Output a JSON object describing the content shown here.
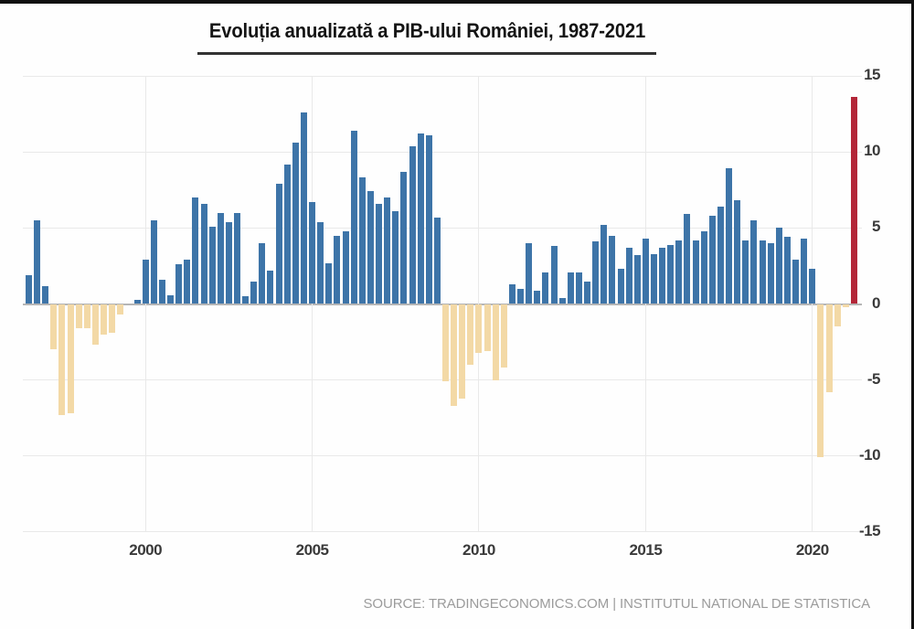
{
  "page": {
    "title": "Evoluția anualizată a PIB-ului României, 1987-2021",
    "source": "SOURCE: TRADINGECONOMICS.COM | INSTITUTUL NATIONAL DE STATISTICA"
  },
  "chart_data": {
    "type": "bar",
    "title": "Evoluția anualizată a PIB-ului României, 1987-2021",
    "ylabel": "",
    "xlabel": "",
    "unit": "%",
    "ylim": [
      -15,
      15
    ],
    "grid": true,
    "legend": null,
    "y_ticks": [
      15,
      10,
      5,
      0,
      -5,
      -10,
      -15
    ],
    "x_year_ticks": [
      {
        "label": "2000",
        "index": 14
      },
      {
        "label": "2005",
        "index": 34
      },
      {
        "label": "2010",
        "index": 54
      },
      {
        "label": "2015",
        "index": 74
      },
      {
        "label": "2020",
        "index": 94
      }
    ],
    "latest_bar_index": 99,
    "colors": {
      "positive_bar": "#3d74a8",
      "negative_bar": "#f3d9a6",
      "latest_bar": "#b32638",
      "zero_line": "#b5b5b5",
      "grid_line": "#e9e9e9"
    },
    "x": [
      "1996 Q3",
      "1996 Q4",
      "1997 Q1",
      "1997 Q2",
      "1997 Q3",
      "1997 Q4",
      "1998 Q1",
      "1998 Q2",
      "1998 Q3",
      "1998 Q4",
      "1999 Q1",
      "1999 Q2",
      "1999 Q3",
      "1999 Q4",
      "2000 Q1",
      "2000 Q2",
      "2000 Q3",
      "2000 Q4",
      "2001 Q1",
      "2001 Q2",
      "2001 Q3",
      "2001 Q4",
      "2002 Q1",
      "2002 Q2",
      "2002 Q3",
      "2002 Q4",
      "2003 Q1",
      "2003 Q2",
      "2003 Q3",
      "2003 Q4",
      "2004 Q1",
      "2004 Q2",
      "2004 Q3",
      "2004 Q4",
      "2005 Q1",
      "2005 Q2",
      "2005 Q3",
      "2005 Q4",
      "2006 Q1",
      "2006 Q2",
      "2006 Q3",
      "2006 Q4",
      "2007 Q1",
      "2007 Q2",
      "2007 Q3",
      "2007 Q4",
      "2008 Q1",
      "2008 Q2",
      "2008 Q3",
      "2008 Q4",
      "2009 Q1",
      "2009 Q2",
      "2009 Q3",
      "2009 Q4",
      "2010 Q1",
      "2010 Q2",
      "2010 Q3",
      "2010 Q4",
      "2011 Q1",
      "2011 Q2",
      "2011 Q3",
      "2011 Q4",
      "2012 Q1",
      "2012 Q2",
      "2012 Q3",
      "2012 Q4",
      "2013 Q1",
      "2013 Q2",
      "2013 Q3",
      "2013 Q4",
      "2014 Q1",
      "2014 Q2",
      "2014 Q3",
      "2014 Q4",
      "2015 Q1",
      "2015 Q2",
      "2015 Q3",
      "2015 Q4",
      "2016 Q1",
      "2016 Q2",
      "2016 Q3",
      "2016 Q4",
      "2017 Q1",
      "2017 Q2",
      "2017 Q3",
      "2017 Q4",
      "2018 Q1",
      "2018 Q2",
      "2018 Q3",
      "2018 Q4",
      "2019 Q1",
      "2019 Q2",
      "2019 Q3",
      "2019 Q4",
      "2020 Q1",
      "2020 Q2",
      "2020 Q3",
      "2020 Q4",
      "2021 Q1",
      "2021 Q2"
    ],
    "values": [
      1.9,
      5.5,
      1.2,
      -3.0,
      -7.3,
      -7.2,
      -1.6,
      -1.6,
      -2.7,
      -2.0,
      -1.9,
      -0.7,
      0.0,
      0.3,
      2.9,
      5.5,
      1.6,
      0.6,
      2.6,
      2.9,
      7.0,
      6.6,
      5.1,
      6.0,
      5.4,
      6.0,
      0.5,
      1.5,
      4.0,
      2.2,
      7.9,
      9.2,
      10.6,
      12.6,
      6.7,
      5.4,
      2.7,
      4.5,
      4.8,
      11.4,
      8.3,
      7.4,
      6.6,
      7.0,
      6.1,
      8.7,
      10.4,
      11.2,
      11.1,
      5.7,
      -5.1,
      -6.7,
      -6.2,
      -4.0,
      -3.2,
      -3.1,
      -5.0,
      -4.2,
      1.3,
      1.0,
      4.0,
      0.9,
      2.1,
      3.8,
      0.4,
      2.1,
      2.1,
      1.5,
      4.1,
      5.2,
      4.5,
      2.3,
      3.7,
      3.2,
      4.3,
      3.3,
      3.7,
      3.9,
      4.2,
      5.9,
      4.2,
      4.8,
      5.8,
      6.4,
      8.9,
      6.8,
      4.2,
      5.5,
      4.2,
      4.0,
      5.0,
      4.4,
      2.9,
      4.3,
      2.3,
      -10.1,
      -5.8,
      -1.5,
      -0.2,
      13.6
    ],
    "source": "SOURCE: TRADINGECONOMICS.COM | INSTITUTUL NATIONAL DE STATISTICA"
  }
}
